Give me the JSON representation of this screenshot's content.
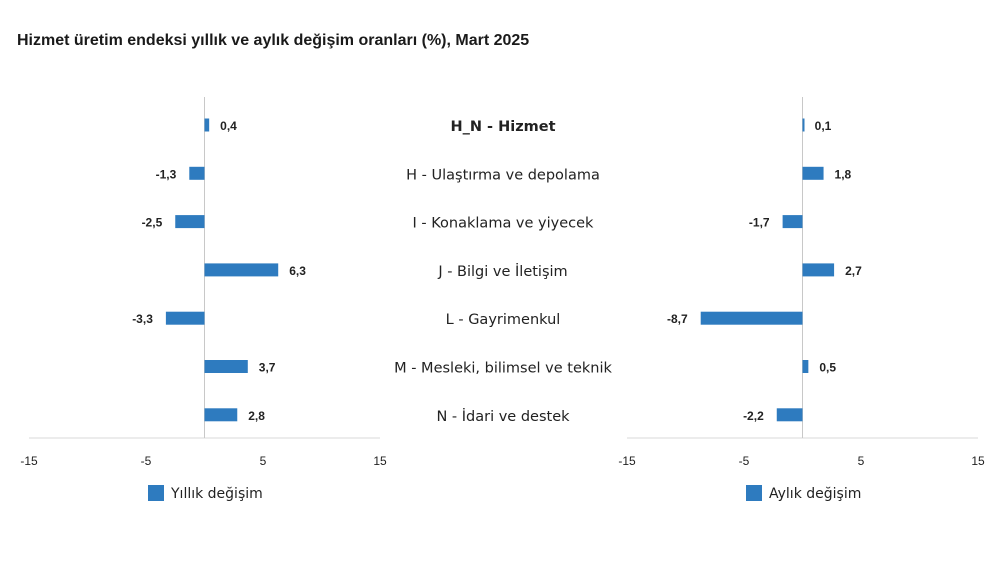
{
  "colors": {
    "bar": "#2E7BBF",
    "axis": "#d9d9d9",
    "zero": "#c8c8c8"
  },
  "chart_data": {
    "type": "bar",
    "orientation": "horizontal",
    "title": "Hizmet üretim endeksi yıllık ve aylık değişim oranları (%), Mart 2025",
    "categories": [
      "H_N - Hizmet",
      "H - Ulaştırma ve depolama",
      "I - Konaklama ve yiyecek",
      "J - Bilgi ve İletişim",
      "L - Gayrimenkul",
      "M - Mesleki, bilimsel ve teknik",
      "N - İdari ve destek"
    ],
    "xlim": [
      -15,
      15
    ],
    "xticks": [
      "-15",
      "-5",
      "5",
      "15"
    ],
    "series": [
      {
        "name": "Yıllık değişim",
        "values": [
          0.4,
          -1.3,
          -2.5,
          6.3,
          -3.3,
          3.7,
          2.8
        ],
        "labels": [
          "0,4",
          "-1,3",
          "-2,5",
          "6,3",
          "-3,3",
          "3,7",
          "2,8"
        ]
      },
      {
        "name": "Aylık değişim",
        "values": [
          0.1,
          1.8,
          -1.7,
          2.7,
          -8.7,
          0.5,
          -2.2
        ],
        "labels": [
          "0,1",
          "1,8",
          "-1,7",
          "2,7",
          "-8,7",
          "0,5",
          "-2,2"
        ]
      }
    ]
  }
}
